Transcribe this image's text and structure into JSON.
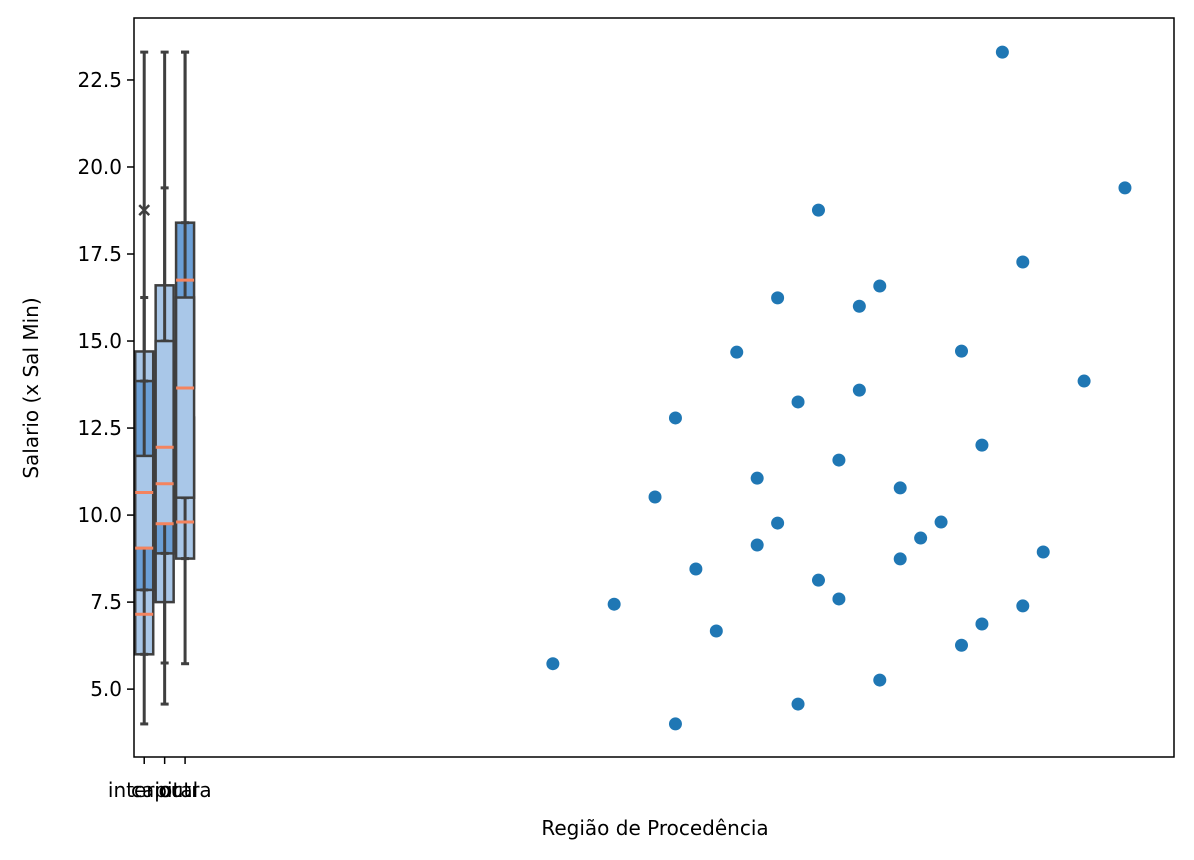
{
  "chart_data": {
    "type": "box",
    "xlabel": "Região de Procedência",
    "ylabel": "Salario (x Sal Min)",
    "categories": [
      "interior",
      "capital",
      "outra"
    ],
    "xlim": [
      -0.5,
      50.4
    ],
    "ylim": [
      3.05,
      24.28
    ],
    "yticks": [
      {
        "value": 5,
        "label": "5.0"
      },
      7.5,
      {
        "value": 10,
        "label": "10.0"
      },
      12.5,
      {
        "value": 15,
        "label": "15.0"
      },
      17.5,
      {
        "value": 20,
        "label": "20.0"
      },
      22.5
    ],
    "box_colors": [
      "#a9c7e8",
      "#6b9fd6",
      "#a9c7e8"
    ],
    "median_color": "#f4845f",
    "boxes": [
      [
        {
          "q1": 6.0,
          "med": 7.15,
          "q3": 14.7,
          "lo": 4.0,
          "hi": 23.3
        },
        {
          "q1": 7.85,
          "med": 9.05,
          "q3": 13.85,
          "lo": 6.0,
          "hi": 16.25
        },
        {
          "q1": 9.05,
          "med": 10.65,
          "q3": 11.7,
          "lo": 7.85,
          "hi": 13.85
        }
      ],
      [
        {
          "q1": 7.5,
          "med": 9.75,
          "q3": 16.6,
          "lo": 4.57,
          "hi": 23.3
        },
        {
          "q1": 8.9,
          "med": 10.9,
          "q3": 14.4,
          "lo": 5.75,
          "hi": 19.4
        },
        {
          "q1": 9.75,
          "med": 11.95,
          "q3": 15.0,
          "lo": 8.9,
          "hi": 15.0
        }
      ],
      [
        {
          "q1": 8.75,
          "med": 9.8,
          "q3": 12.8,
          "lo": 5.73,
          "hi": 23.3
        },
        {
          "q1": 13.65,
          "med": 16.75,
          "q3": 18.4,
          "lo": 10.5,
          "hi": 23.3
        },
        {
          "q1": 10.5,
          "med": 13.65,
          "q3": 16.25,
          "lo": 8.75,
          "hi": 18.4
        }
      ]
    ],
    "outliers": [
      [
        18.76
      ],
      [],
      []
    ],
    "scatter": {
      "color": "#1f77b4",
      "x": [
        20,
        23,
        25,
        26,
        26,
        27,
        28,
        29,
        30,
        30,
        31,
        31,
        32,
        32,
        33,
        33,
        34,
        34,
        35,
        35,
        36,
        36,
        37,
        37,
        38,
        39,
        40,
        40,
        41,
        41,
        42,
        43,
        43,
        44,
        46,
        48
      ],
      "values": [
        5.73,
        7.44,
        10.52,
        12.79,
        4.0,
        8.45,
        6.67,
        14.68,
        11.06,
        9.14,
        16.24,
        9.77,
        13.25,
        4.57,
        18.76,
        8.13,
        11.58,
        7.59,
        16.0,
        13.59,
        16.58,
        5.26,
        10.78,
        8.74,
        9.34,
        9.8,
        14.71,
        6.26,
        12.01,
        6.87,
        23.3,
        17.27,
        7.39,
        8.94,
        13.85,
        19.4
      ]
    }
  }
}
